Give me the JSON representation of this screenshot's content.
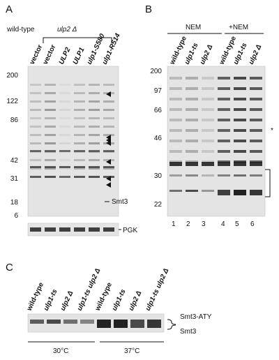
{
  "panels": [
    {
      "label": "A",
      "strain_wt": "wild-type",
      "strain_mut": "ulp2 Δ",
      "lanes": [
        "vector",
        "vector",
        "ULP2",
        "ULP1",
        "ulp1-S580",
        "ulp1-R514"
      ],
      "markers": [
        "200",
        "122",
        "86",
        "42",
        "31",
        "18",
        "6"
      ],
      "band_label": "Smt3",
      "loading_label": "PGK"
    },
    {
      "label": "B",
      "groups": [
        "NEM",
        "+NEM"
      ],
      "lanes": [
        "wild-type",
        "ulp1-ts",
        "ulp2 Δ",
        "wild-type",
        "ulp1-ts",
        "ulp2 Δ"
      ],
      "markers": [
        "200",
        "97",
        "66",
        "46",
        "30",
        "22"
      ],
      "lane_numbers": [
        "1",
        "2",
        "3",
        "4",
        "5",
        "6"
      ],
      "star": "*"
    },
    {
      "label": "C",
      "lanes": [
        "wild-type",
        "ulp1-ts",
        "ulp2 Δ",
        "ulp1-ts ulp2 Δ",
        "wild-type",
        "ulp1-ts",
        "ulp2 Δ",
        "ulp1-ts ulp2 Δ"
      ],
      "band_labels": [
        "Smt3-ATY",
        "Smt3"
      ],
      "temperatures": [
        "30°C",
        "37°C"
      ]
    }
  ]
}
